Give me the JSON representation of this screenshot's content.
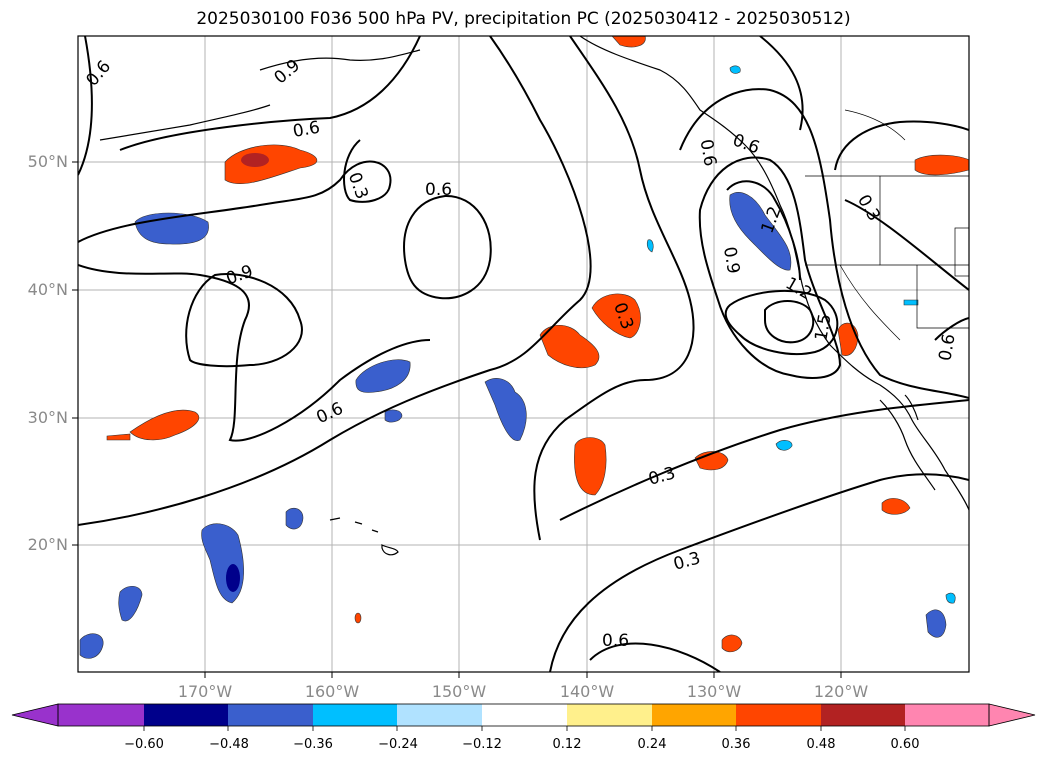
{
  "title": "2025030100 F036 500 hPa PV, precipitation PC (2025030412 - 2025030512)",
  "lat_labels": [
    "50°N",
    "40°N",
    "30°N",
    "20°N"
  ],
  "lon_labels": [
    "170°W",
    "160°W",
    "150°W",
    "140°W",
    "130°W",
    "120°W"
  ],
  "contour_labels": [
    "0.6",
    "0.9",
    "0.6",
    "0.3",
    "0.6",
    "0.9",
    "0.6",
    "0.3",
    "0.3",
    "0.3",
    "0.6",
    "0.6",
    "0.9",
    "1.2",
    "1.2",
    "1.5",
    "0.3",
    "0.6",
    "0.6"
  ],
  "colorbar": {
    "ticks": [
      "−0.60",
      "−0.48",
      "−0.36",
      "−0.24",
      "−0.12",
      "0.12",
      "0.24",
      "0.36",
      "0.48",
      "0.60"
    ],
    "colors": [
      "#9932cc",
      "#00008b",
      "#3a5fcd",
      "#00bfff",
      "#b0e2ff",
      "#ffffff",
      "#fff08c",
      "#ffa500",
      "#ff4500",
      "#b22222",
      "#ff85b0"
    ]
  }
}
